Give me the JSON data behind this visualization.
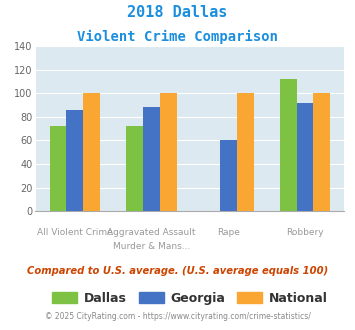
{
  "title_line1": "2018 Dallas",
  "title_line2": "Violent Crime Comparison",
  "series": {
    "Dallas": [
      72,
      72,
      null,
      112
    ],
    "Georgia": [
      86,
      88,
      60,
      92
    ],
    "National": [
      100,
      100,
      100,
      100
    ]
  },
  "colors": {
    "Dallas": "#7dc242",
    "Georgia": "#4472c4",
    "National": "#faa632"
  },
  "ylim": [
    0,
    140
  ],
  "yticks": [
    0,
    20,
    40,
    60,
    80,
    100,
    120,
    140
  ],
  "bg_color": "#dce9f0",
  "title_color": "#1b8fde",
  "note_text": "Compared to U.S. average. (U.S. average equals 100)",
  "note_color": "#cc4400",
  "footer_text": "© 2025 CityRating.com - https://www.cityrating.com/crime-statistics/",
  "footer_color": "#888888",
  "footer_link_color": "#1b8fde",
  "bar_width": 0.22,
  "top_labels": [
    "",
    "Aggravated Assault",
    "",
    ""
  ],
  "bottom_labels": [
    "All Violent Crime",
    "Murder & Mans...",
    "Rape",
    "Robbery"
  ]
}
